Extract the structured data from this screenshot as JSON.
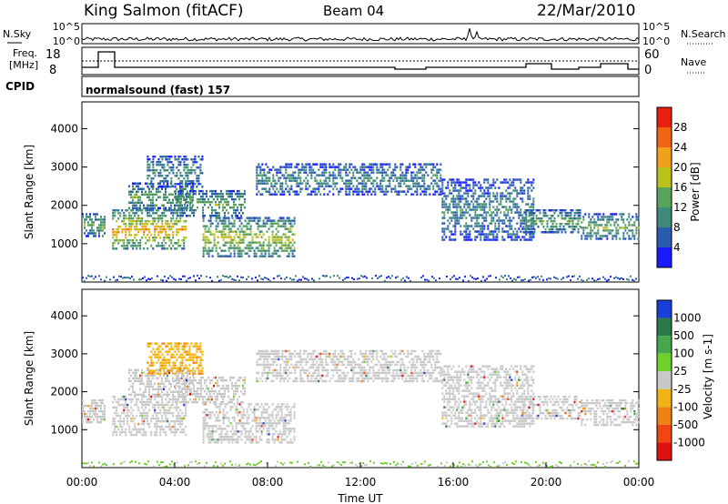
{
  "header": {
    "station": "King Salmon (fitACF)",
    "beam": "Beam 04",
    "date": "22/Mar/2010"
  },
  "sky_panel": {
    "left_label": "N.Sky",
    "right_label": "N.Search",
    "left_ticks": [
      "10^5",
      "10^0"
    ],
    "right_ticks": [
      "10^5",
      "10^0"
    ]
  },
  "freq_panel": {
    "left_label_1": "Freq.",
    "left_label_2": "[MHz]",
    "left_ticks": [
      "18",
      "8"
    ],
    "right_ticks": [
      "60",
      "0"
    ],
    "right_label": "Nave"
  },
  "cpid_panel": {
    "label": "CPID",
    "value": "normalsound (fast) 157"
  },
  "chart_data": [
    {
      "type": "heatmap",
      "panel": "power",
      "x_range_hours": [
        0,
        24
      ],
      "ylabel": "Slant Range [km]",
      "yticks": [
        1000,
        2000,
        3000,
        4000
      ],
      "ylim": [
        0,
        4700
      ],
      "colorbar_label": "Power [dB]",
      "colorbar_ticks": [
        4,
        8,
        12,
        16,
        20,
        24,
        28
      ],
      "colorbar_colors": [
        "#1a1aff",
        "#2a5bb0",
        "#3f8a7a",
        "#5aa35a",
        "#b8c21a",
        "#f0a01a",
        "#f06414",
        "#e82010"
      ],
      "echo_bands": [
        {
          "t0": 0.0,
          "t1": 1.0,
          "r0": 1200,
          "r1": 1800,
          "level": 3
        },
        {
          "t0": 1.3,
          "t1": 4.5,
          "r0": 850,
          "r1": 1900,
          "level": 5
        },
        {
          "t0": 2.0,
          "t1": 4.8,
          "r0": 1900,
          "r1": 2600,
          "level": 3
        },
        {
          "t0": 2.8,
          "t1": 5.2,
          "r0": 2500,
          "r1": 3300,
          "level": 2
        },
        {
          "t0": 5.2,
          "t1": 9.2,
          "r0": 650,
          "r1": 1700,
          "level": 4
        },
        {
          "t0": 4.0,
          "t1": 7.0,
          "r0": 1700,
          "r1": 2400,
          "level": 3
        },
        {
          "t0": 7.5,
          "t1": 15.5,
          "r0": 2300,
          "r1": 3100,
          "level": 2
        },
        {
          "t0": 15.5,
          "t1": 19.5,
          "r0": 1100,
          "r1": 2700,
          "level": 2
        },
        {
          "t0": 19.0,
          "t1": 21.5,
          "r0": 1300,
          "r1": 1900,
          "level": 3
        },
        {
          "t0": 21.5,
          "t1": 24.0,
          "r0": 1100,
          "r1": 1800,
          "level": 3
        }
      ]
    },
    {
      "type": "heatmap",
      "panel": "velocity",
      "x_range_hours": [
        0,
        24
      ],
      "ylabel": "Slant Range [km]",
      "yticks": [
        1000,
        2000,
        3000,
        4000
      ],
      "ylim": [
        0,
        4700
      ],
      "xticks": [
        "00:00",
        "04:00",
        "08:00",
        "12:00",
        "16:00",
        "20:00",
        "00:00"
      ],
      "xlabel": "Time UT",
      "colorbar_label": "Velocity [m s-1]",
      "colorbar_ticks": [
        1000,
        500,
        100,
        25,
        -25,
        -100,
        -500,
        -1000
      ],
      "colorbar_colors": [
        "#1a3fd8",
        "#2a7a4a",
        "#45a84a",
        "#6fd028",
        "#c8c8c8",
        "#f0b414",
        "#f08214",
        "#f04614",
        "#e01010"
      ]
    }
  ]
}
